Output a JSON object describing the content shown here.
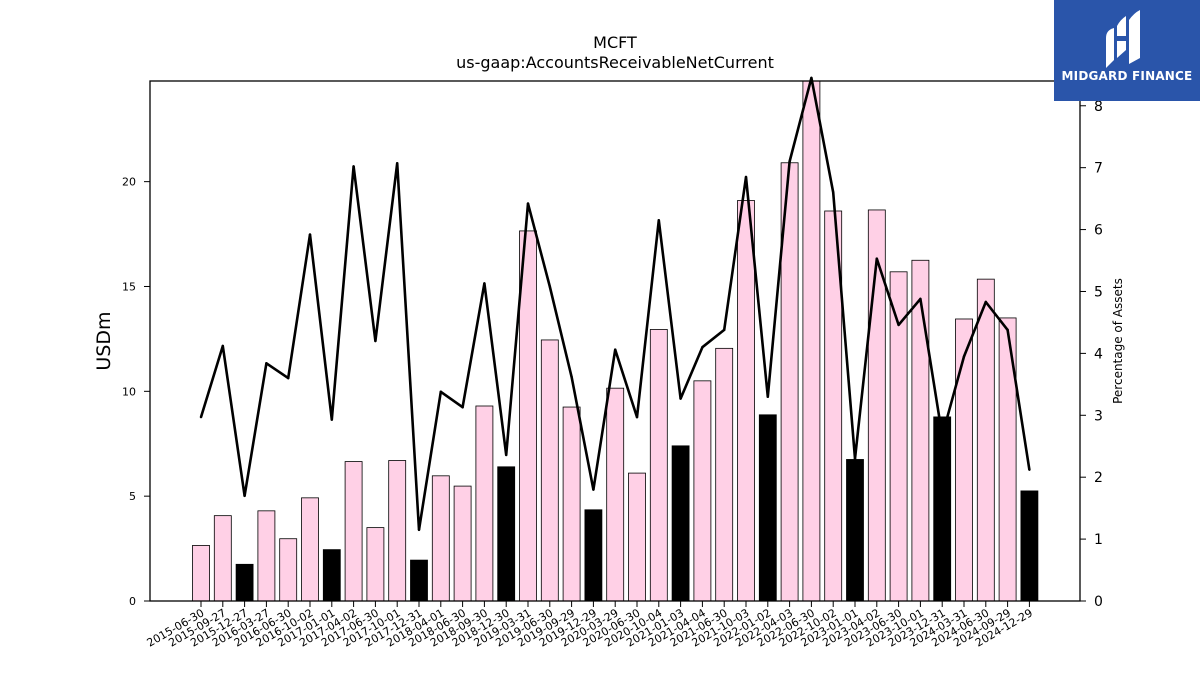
{
  "brand": {
    "name": "MIDGARD FINANCE",
    "logo_icon": "mf-monogram-icon",
    "color": "#2a55aa"
  },
  "chart_data": {
    "type": "bar+line",
    "title": "MCFT",
    "subtitle": "us-gaap:AccountsReceivableNetCurrent",
    "ylabel": "USDm",
    "y2label": "Percentage of Assets",
    "ylim": [
      0,
      24.8
    ],
    "y2lim": [
      0,
      8.4
    ],
    "yticks": [
      0,
      5,
      10,
      15,
      20
    ],
    "y2ticks": [
      0,
      1,
      2,
      3,
      4,
      5,
      6,
      7,
      8
    ],
    "categories": [
      "2015-06-30",
      "2015-09-27",
      "2015-12-27",
      "2016-03-27",
      "2016-06-30",
      "2016-10-02",
      "2017-01-01",
      "2017-04-02",
      "2017-06-30",
      "2017-10-01",
      "2017-12-31",
      "2018-04-01",
      "2018-06-30",
      "2018-09-30",
      "2018-12-30",
      "2019-03-31",
      "2019-06-30",
      "2019-09-29",
      "2019-12-29",
      "2020-03-29",
      "2020-06-30",
      "2020-10-04",
      "2021-01-03",
      "2021-04-04",
      "2021-06-30",
      "2021-10-03",
      "2022-01-02",
      "2022-04-03",
      "2022-06-30",
      "2022-10-02",
      "2023-01-01",
      "2023-04-02",
      "2023-06-30",
      "2023-10-01",
      "2023-12-31",
      "2024-03-31",
      "2024-06-30",
      "2024-09-29",
      "2024-12-29"
    ],
    "series": [
      {
        "type": "bar",
        "values": [
          2.65,
          4.07,
          1.75,
          4.3,
          2.97,
          4.92,
          2.45,
          6.65,
          3.5,
          6.7,
          1.95,
          5.97,
          5.48,
          9.3,
          6.4,
          17.65,
          12.45,
          9.25,
          4.35,
          10.15,
          6.1,
          12.95,
          7.4,
          10.5,
          12.05,
          19.1,
          8.88,
          20.9,
          24.8,
          18.6,
          6.75,
          18.65,
          15.7,
          16.25,
          8.78,
          13.45,
          15.35,
          13.5,
          5.25
        ],
        "highlight": [
          false,
          false,
          true,
          false,
          false,
          false,
          true,
          false,
          false,
          false,
          true,
          false,
          false,
          false,
          true,
          false,
          false,
          false,
          true,
          false,
          false,
          false,
          true,
          false,
          false,
          false,
          true,
          false,
          false,
          false,
          true,
          false,
          false,
          false,
          true,
          false,
          false,
          false,
          true
        ],
        "color": "#ffd0e6",
        "highlight_color": "#000000"
      },
      {
        "type": "line",
        "axis": "right",
        "values": [
          2.97,
          4.12,
          1.7,
          3.84,
          3.6,
          5.92,
          2.93,
          7.02,
          4.2,
          7.07,
          1.15,
          3.38,
          3.13,
          5.13,
          2.36,
          6.42,
          5.08,
          3.62,
          1.8,
          4.06,
          2.97,
          6.15,
          3.27,
          4.1,
          4.38,
          6.85,
          3.3,
          7.1,
          8.45,
          6.6,
          2.3,
          5.53,
          4.46,
          4.88,
          2.67,
          3.95,
          4.83,
          4.38,
          2.12
        ],
        "color": "#000000"
      }
    ],
    "grid": false,
    "legend": "none"
  }
}
